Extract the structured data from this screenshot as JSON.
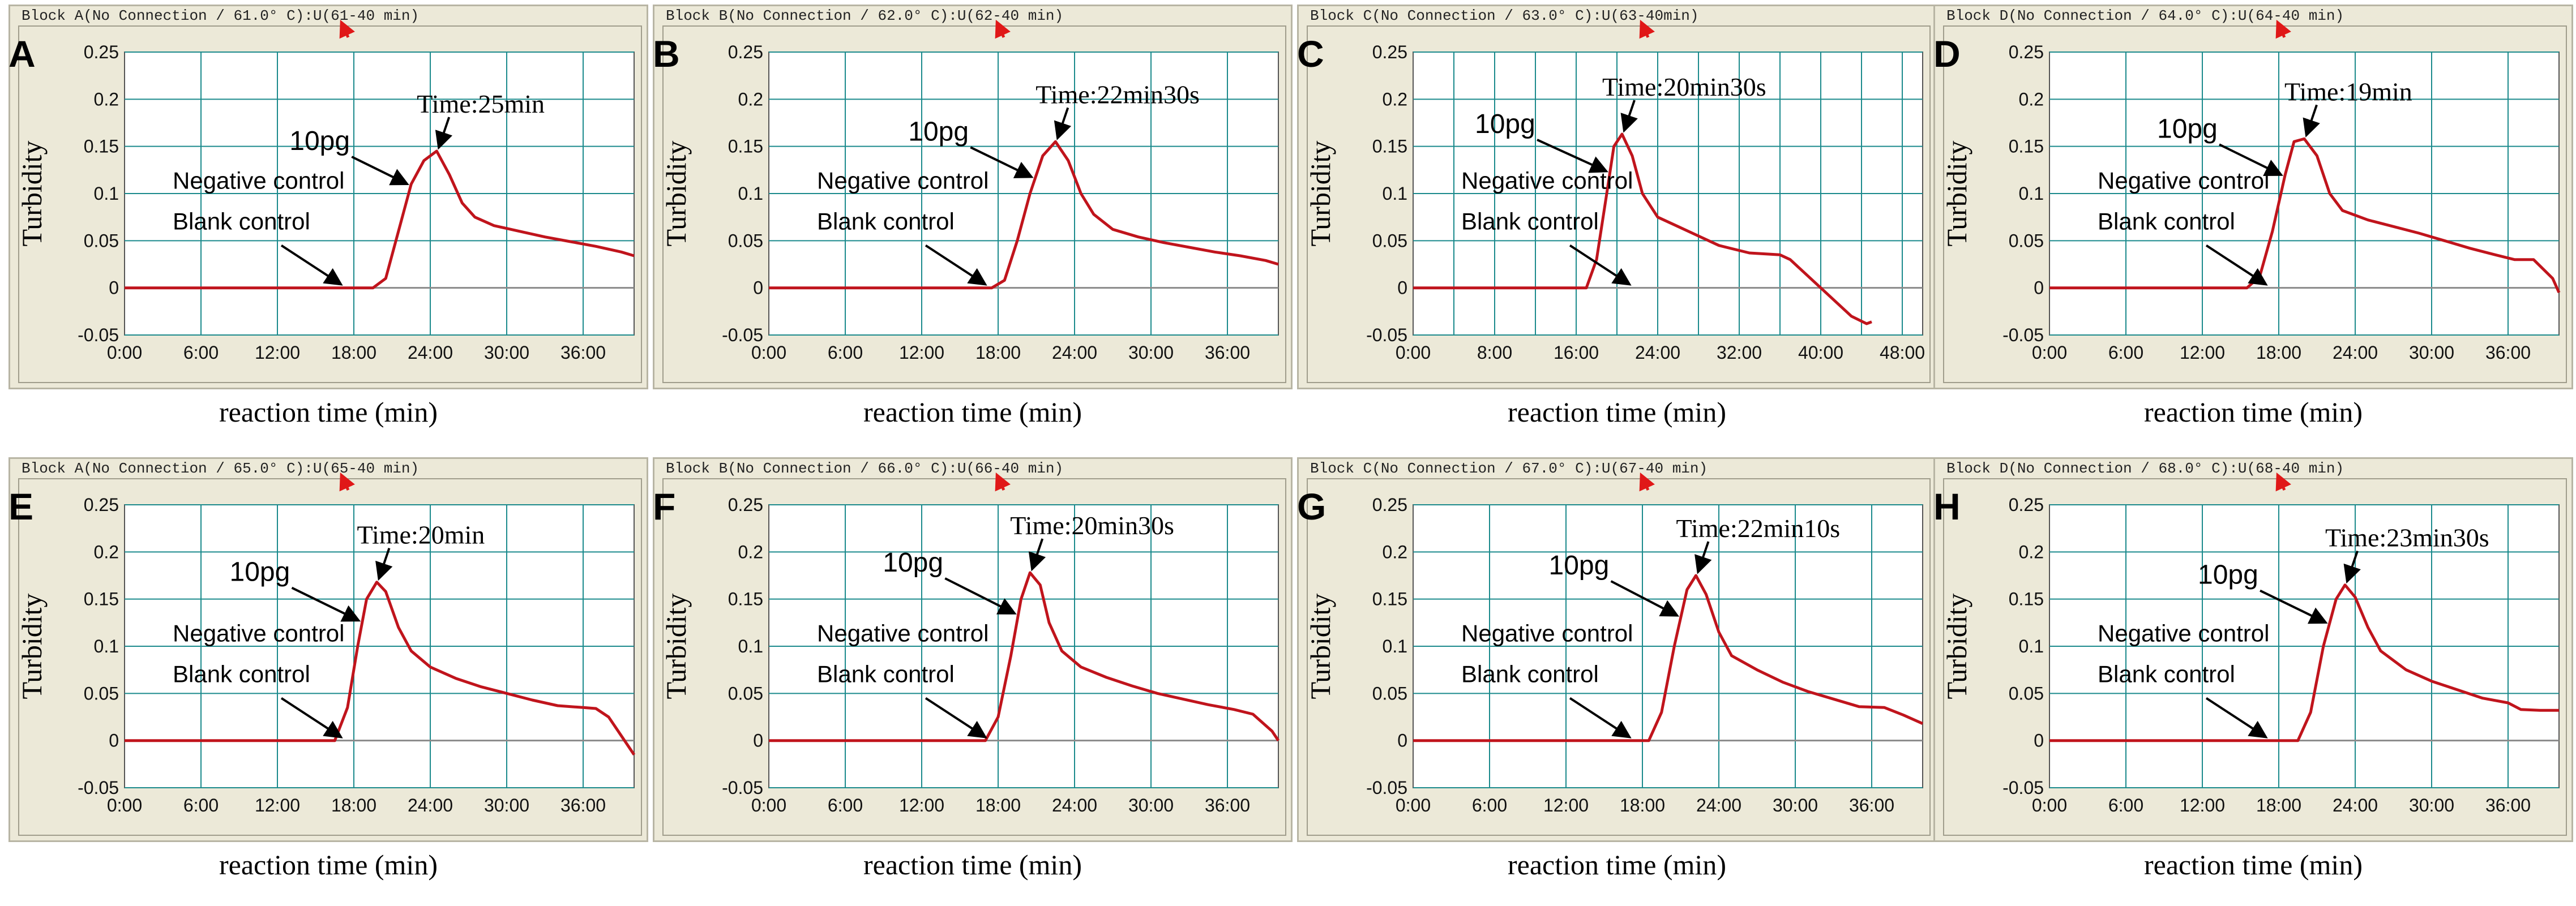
{
  "colors": {
    "curve": "#c0141c",
    "grid": "#1b8a8c",
    "plot_bg": "#ffffff",
    "frame": "#ece9d8",
    "baseline": "#8a8a8a",
    "arrow_red": "#e01818"
  },
  "chart_data": [
    {
      "panel": "A",
      "type": "line",
      "block_title": "Block A(No Connection / 61.0° C):U(61-40 min)",
      "xlabel": "reaction time (min)",
      "ylabel": "Turbidity",
      "xlim": [
        0,
        40
      ],
      "ylim": [
        -0.05,
        0.25
      ],
      "x_ticks": [
        0,
        6,
        12,
        18,
        24,
        30,
        36
      ],
      "x_tick_labels": [
        "0:00",
        "6:00",
        "12:00",
        "18:00",
        "24:00",
        "30:00",
        "36:00"
      ],
      "y_ticks": [
        -0.05,
        0,
        0.05,
        0.1,
        0.15,
        0.2,
        0.25
      ],
      "y_tick_labels": [
        "-0.05",
        "0",
        "0.05",
        "0.1",
        "0.15",
        "0.2",
        "0.25"
      ],
      "series": [
        {
          "name": "10pg",
          "x": [
            0,
            19.5,
            20.5,
            21.5,
            22.5,
            23.5,
            24.5,
            25.5,
            26.5,
            27.5,
            29,
            31,
            33,
            35,
            37,
            39,
            40
          ],
          "y": [
            0,
            0,
            0.01,
            0.06,
            0.11,
            0.135,
            0.145,
            0.12,
            0.09,
            0.075,
            0.066,
            0.06,
            0.054,
            0.049,
            0.044,
            0.038,
            0.034
          ]
        }
      ],
      "time_label": "Time:25min",
      "peak_label": "10pg",
      "negative_label": "Negative control",
      "blank_label": "Blank control"
    },
    {
      "panel": "B",
      "type": "line",
      "block_title": "Block B(No Connection / 62.0° C):U(62-40 min)",
      "xlabel": "reaction time (min)",
      "ylabel": "Turbidity",
      "xlim": [
        0,
        40
      ],
      "ylim": [
        -0.05,
        0.25
      ],
      "x_ticks": [
        0,
        6,
        12,
        18,
        24,
        30,
        36
      ],
      "x_tick_labels": [
        "0:00",
        "6:00",
        "12:00",
        "18:00",
        "24:00",
        "30:00",
        "36:00"
      ],
      "y_ticks": [
        -0.05,
        0,
        0.05,
        0.1,
        0.15,
        0.2,
        0.25
      ],
      "y_tick_labels": [
        "-0.05",
        "0",
        "0.05",
        "0.1",
        "0.15",
        "0.2",
        "0.25"
      ],
      "series": [
        {
          "name": "10pg",
          "x": [
            0,
            17.5,
            18.5,
            19.5,
            20.5,
            21.5,
            22.5,
            23.5,
            24.5,
            25.5,
            27,
            29,
            31,
            33,
            35,
            37,
            39,
            40
          ],
          "y": [
            0,
            0,
            0.008,
            0.05,
            0.1,
            0.14,
            0.155,
            0.135,
            0.1,
            0.078,
            0.062,
            0.054,
            0.048,
            0.043,
            0.038,
            0.034,
            0.029,
            0.025
          ]
        }
      ],
      "time_label": "Time:22min30s",
      "peak_label": "10pg",
      "negative_label": "Negative control",
      "blank_label": "Blank control"
    },
    {
      "panel": "C",
      "type": "line",
      "block_title": "Block C(No Connection / 63.0° C):U(63-40min)",
      "xlabel": "reaction time (min)",
      "ylabel": "Turbidity",
      "xlim": [
        0,
        50
      ],
      "ylim": [
        -0.05,
        0.25
      ],
      "x_ticks": [
        0,
        4,
        8,
        12,
        16,
        20,
        24,
        28,
        32,
        36,
        40,
        44,
        48
      ],
      "x_tick_labels": [
        "0:00",
        "",
        "8:00",
        "",
        "16:00",
        "",
        "24:00",
        "",
        "32:00",
        "",
        "40:00",
        "",
        "48:00"
      ],
      "y_ticks": [
        -0.05,
        0,
        0.05,
        0.1,
        0.15,
        0.2,
        0.25
      ],
      "y_tick_labels": [
        "-0.05",
        "0",
        "0.05",
        "0.1",
        "0.15",
        "0.2",
        "0.25"
      ],
      "series": [
        {
          "name": "10pg",
          "x": [
            0,
            17,
            18,
            19,
            19.7,
            20.5,
            21.5,
            22.5,
            24,
            26,
            28,
            30,
            33,
            36,
            37,
            38.5,
            40,
            41.5,
            43,
            44.5,
            45
          ],
          "y": [
            0,
            0,
            0.03,
            0.1,
            0.15,
            0.163,
            0.14,
            0.1,
            0.075,
            0.065,
            0.055,
            0.045,
            0.037,
            0.035,
            0.03,
            0.015,
            0,
            -0.015,
            -0.03,
            -0.038,
            -0.036
          ]
        }
      ],
      "time_label": "Time:20min30s",
      "peak_label": "10pg",
      "negative_label": "Negative control",
      "blank_label": "Blank control"
    },
    {
      "panel": "D",
      "type": "line",
      "block_title": "Block D(No Connection / 64.0° C):U(64-40 min)",
      "xlabel": "reaction time (min)",
      "ylabel": "Turbidity",
      "xlim": [
        0,
        40
      ],
      "ylim": [
        -0.05,
        0.25
      ],
      "x_ticks": [
        0,
        6,
        12,
        18,
        24,
        30,
        36
      ],
      "x_tick_labels": [
        "0:00",
        "6:00",
        "12:00",
        "18:00",
        "24:00",
        "30:00",
        "36:00"
      ],
      "y_ticks": [
        -0.05,
        0,
        0.05,
        0.1,
        0.15,
        0.2,
        0.25
      ],
      "y_tick_labels": [
        "-0.05",
        "0",
        "0.05",
        "0.1",
        "0.15",
        "0.2",
        "0.25"
      ],
      "series": [
        {
          "name": "10pg",
          "x": [
            0,
            15.5,
            16.5,
            17.5,
            18.5,
            19.2,
            20,
            21,
            22,
            23,
            25,
            27,
            29,
            31,
            33,
            35,
            36.5,
            38,
            39.5,
            40
          ],
          "y": [
            0,
            0,
            0.012,
            0.06,
            0.12,
            0.155,
            0.158,
            0.14,
            0.1,
            0.082,
            0.072,
            0.065,
            0.058,
            0.05,
            0.042,
            0.035,
            0.03,
            0.03,
            0.01,
            -0.005
          ]
        }
      ],
      "time_label": "Time:19min",
      "peak_label": "10pg",
      "negative_label": "Negative control",
      "blank_label": "Blank control"
    },
    {
      "panel": "E",
      "type": "line",
      "block_title": "Block A(No Connection / 65.0° C):U(65-40 min)",
      "xlabel": "reaction time (min)",
      "ylabel": "Turbidity",
      "xlim": [
        0,
        40
      ],
      "ylim": [
        -0.05,
        0.25
      ],
      "x_ticks": [
        0,
        6,
        12,
        18,
        24,
        30,
        36
      ],
      "x_tick_labels": [
        "0:00",
        "6:00",
        "12:00",
        "18:00",
        "24:00",
        "30:00",
        "36:00"
      ],
      "y_ticks": [
        -0.05,
        0,
        0.05,
        0.1,
        0.15,
        0.2,
        0.25
      ],
      "y_tick_labels": [
        "-0.05",
        "0",
        "0.05",
        "0.1",
        "0.15",
        "0.2",
        "0.25"
      ],
      "series": [
        {
          "name": "10pg",
          "x": [
            0,
            16.5,
            17.5,
            18.3,
            19,
            19.8,
            20.5,
            21.5,
            22.5,
            24,
            26,
            28,
            30,
            32,
            34,
            36,
            37,
            38,
            39,
            40
          ],
          "y": [
            0,
            0,
            0.035,
            0.1,
            0.15,
            0.168,
            0.158,
            0.12,
            0.095,
            0.078,
            0.066,
            0.057,
            0.05,
            0.043,
            0.037,
            0.035,
            0.034,
            0.025,
            0.005,
            -0.015
          ]
        }
      ],
      "time_label": "Time:20min",
      "peak_label": "10pg",
      "negative_label": "Negative control",
      "blank_label": "Blank control"
    },
    {
      "panel": "F",
      "type": "line",
      "block_title": "Block B(No Connection / 66.0° C):U(66-40 min)",
      "xlabel": "reaction time (min)",
      "ylabel": "Turbidity",
      "xlim": [
        0,
        40
      ],
      "ylim": [
        -0.05,
        0.25
      ],
      "x_ticks": [
        0,
        6,
        12,
        18,
        24,
        30,
        36
      ],
      "x_tick_labels": [
        "0:00",
        "6:00",
        "12:00",
        "18:00",
        "24:00",
        "30:00",
        "36:00"
      ],
      "y_ticks": [
        -0.05,
        0,
        0.05,
        0.1,
        0.15,
        0.2,
        0.25
      ],
      "y_tick_labels": [
        "-0.05",
        "0",
        "0.05",
        "0.1",
        "0.15",
        "0.2",
        "0.25"
      ],
      "series": [
        {
          "name": "10pg",
          "x": [
            0,
            17,
            18,
            19,
            19.8,
            20.5,
            21.3,
            22,
            23,
            24.5,
            26.5,
            28.5,
            30.5,
            32.5,
            34.5,
            36.5,
            38,
            39.5,
            40
          ],
          "y": [
            0,
            0,
            0.025,
            0.09,
            0.15,
            0.178,
            0.165,
            0.125,
            0.095,
            0.078,
            0.067,
            0.058,
            0.05,
            0.044,
            0.038,
            0.033,
            0.028,
            0.01,
            0
          ]
        }
      ],
      "time_label": "Time:20min30s",
      "peak_label": "10pg",
      "negative_label": "Negative control",
      "blank_label": "Blank control"
    },
    {
      "panel": "G",
      "type": "line",
      "block_title": "Block C(No Connection / 67.0° C):U(67-40 min)",
      "xlabel": "reaction time (min)",
      "ylabel": "Turbidity",
      "xlim": [
        0,
        40
      ],
      "ylim": [
        -0.05,
        0.25
      ],
      "x_ticks": [
        0,
        6,
        12,
        18,
        24,
        30,
        36
      ],
      "x_tick_labels": [
        "0:00",
        "6:00",
        "12:00",
        "18:00",
        "24:00",
        "30:00",
        "36:00"
      ],
      "y_ticks": [
        -0.05,
        0,
        0.05,
        0.1,
        0.15,
        0.2,
        0.25
      ],
      "y_tick_labels": [
        "-0.05",
        "0",
        "0.05",
        "0.1",
        "0.15",
        "0.2",
        "0.25"
      ],
      "series": [
        {
          "name": "10pg",
          "x": [
            0,
            18.5,
            19.5,
            20.5,
            21.5,
            22.2,
            23,
            24,
            25,
            27,
            29,
            31,
            33,
            35,
            37,
            38.5,
            40
          ],
          "y": [
            0,
            0,
            0.03,
            0.1,
            0.16,
            0.175,
            0.155,
            0.115,
            0.09,
            0.075,
            0.062,
            0.052,
            0.044,
            0.036,
            0.035,
            0.027,
            0.018
          ]
        }
      ],
      "time_label": "Time:22min10s",
      "peak_label": "10pg",
      "negative_label": "Negative control",
      "blank_label": "Blank control"
    },
    {
      "panel": "H",
      "type": "line",
      "block_title": "Block D(No Connection / 68.0° C):U(68-40 min)",
      "xlabel": "reaction time (min)",
      "ylabel": "Turbidity",
      "xlim": [
        0,
        40
      ],
      "ylim": [
        -0.05,
        0.25
      ],
      "x_ticks": [
        0,
        6,
        12,
        18,
        24,
        30,
        36
      ],
      "x_tick_labels": [
        "0:00",
        "6:00",
        "12:00",
        "18:00",
        "24:00",
        "30:00",
        "36:00"
      ],
      "y_ticks": [
        -0.05,
        0,
        0.05,
        0.1,
        0.15,
        0.2,
        0.25
      ],
      "y_tick_labels": [
        "-0.05",
        "0",
        "0.05",
        "0.1",
        "0.15",
        "0.2",
        "0.25"
      ],
      "series": [
        {
          "name": "10pg",
          "x": [
            0,
            19.5,
            20.5,
            21.5,
            22.5,
            23.2,
            24,
            25,
            26,
            28,
            30,
            32,
            34,
            36,
            37,
            38.5,
            40
          ],
          "y": [
            0,
            0,
            0.03,
            0.1,
            0.15,
            0.165,
            0.152,
            0.12,
            0.095,
            0.075,
            0.063,
            0.054,
            0.045,
            0.04,
            0.033,
            0.032,
            0.032
          ]
        }
      ],
      "time_label": "Time:23min30s",
      "peak_label": "10pg",
      "negative_label": "Negative control",
      "blank_label": "Blank control"
    }
  ]
}
